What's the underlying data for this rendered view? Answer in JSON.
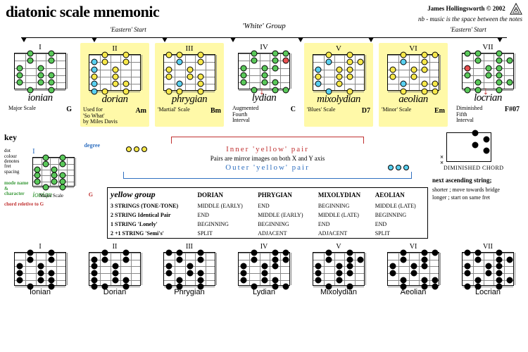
{
  "title": "diatonic scale mnemonic",
  "credits": {
    "line1": "James Hollingsworth © 2002",
    "line2": "nb - music is the space between the notes"
  },
  "group_label": "'White' Group",
  "eastern_start": "'Eastern' Start",
  "modes": [
    {
      "roman": "I",
      "name": "ionian",
      "desc": "Major Scale",
      "chord": "G",
      "yellow": false
    },
    {
      "roman": "II",
      "name": "dorian",
      "desc": "Used for\n'So What'\nby Miles Davis",
      "chord": "Am",
      "yellow": true
    },
    {
      "roman": "III",
      "name": "phrygian",
      "desc": "'Martial' Scale",
      "chord": "Bm",
      "yellow": true
    },
    {
      "roman": "IV",
      "name": "lydian",
      "desc": "Augmented\nFourth\nInterval",
      "chord": "C",
      "yellow": false
    },
    {
      "roman": "V",
      "name": "mixolydian",
      "desc": "'Blues' Scale",
      "chord": "D7",
      "yellow": true
    },
    {
      "roman": "VI",
      "name": "aeolian",
      "desc": "'Minor' Scale",
      "chord": "Em",
      "yellow": true
    },
    {
      "roman": "VII",
      "name": "locrian",
      "desc": "Diminished\nFifth\nInterval",
      "chord": "F#07",
      "yellow": false
    }
  ],
  "fretboard": {
    "strings": 6,
    "frets": 5,
    "colors": {
      "green": "#5ac85a",
      "yellow": "#f7e84a",
      "cyan": "#5ad0f0",
      "red": "#e85050",
      "black": "#000000"
    }
  },
  "mode_dots": {
    "ionian": [
      [
        "g",
        1,
        1
      ],
      [
        "g",
        1,
        3
      ],
      [
        "g",
        2,
        1
      ],
      [
        "g",
        2,
        3
      ],
      [
        "g",
        3,
        0
      ],
      [
        "g",
        3,
        2
      ],
      [
        "g",
        4,
        0
      ],
      [
        "g",
        4,
        2
      ],
      [
        "g",
        4,
        3
      ],
      [
        "g",
        5,
        0
      ],
      [
        "g",
        5,
        2
      ],
      [
        "g",
        5,
        3
      ],
      [
        "g",
        6,
        1
      ],
      [
        "g",
        6,
        3
      ]
    ],
    "dorian": [
      [
        "y",
        1,
        1
      ],
      [
        "y",
        1,
        3
      ],
      [
        "c",
        2,
        0
      ],
      [
        "y",
        2,
        1
      ],
      [
        "y",
        2,
        3
      ],
      [
        "c",
        3,
        0
      ],
      [
        "y",
        3,
        2
      ],
      [
        "y",
        4,
        0
      ],
      [
        "y",
        4,
        2
      ],
      [
        "c",
        5,
        0
      ],
      [
        "y",
        5,
        2
      ],
      [
        "y",
        5,
        3
      ],
      [
        "c",
        6,
        0
      ],
      [
        "y",
        6,
        1
      ],
      [
        "y",
        6,
        3
      ]
    ],
    "phrygian": [
      [
        "y",
        1,
        0
      ],
      [
        "y",
        1,
        1
      ],
      [
        "y",
        1,
        3
      ],
      [
        "c",
        2,
        1
      ],
      [
        "y",
        2,
        3
      ],
      [
        "y",
        3,
        0
      ],
      [
        "y",
        3,
        2
      ],
      [
        "y",
        4,
        0
      ],
      [
        "y",
        4,
        2
      ],
      [
        "y",
        4,
        3
      ],
      [
        "c",
        5,
        1
      ],
      [
        "y",
        5,
        3
      ],
      [
        "y",
        6,
        0
      ],
      [
        "y",
        6,
        1
      ],
      [
        "y",
        6,
        3
      ]
    ],
    "lydian": [
      [
        "g",
        1,
        1
      ],
      [
        "g",
        1,
        3
      ],
      [
        "g",
        1,
        4
      ],
      [
        "g",
        2,
        1
      ],
      [
        "g",
        2,
        3
      ],
      [
        "r",
        2,
        4
      ],
      [
        "g",
        3,
        0
      ],
      [
        "g",
        3,
        2
      ],
      [
        "g",
        3,
        3
      ],
      [
        "g",
        4,
        0
      ],
      [
        "g",
        4,
        2
      ],
      [
        "g",
        5,
        0
      ],
      [
        "g",
        5,
        2
      ],
      [
        "g",
        5,
        3
      ],
      [
        "g",
        6,
        1
      ],
      [
        "g",
        6,
        3
      ],
      [
        "g",
        6,
        4
      ]
    ],
    "mixolydian": [
      [
        "y",
        1,
        1
      ],
      [
        "y",
        1,
        3
      ],
      [
        "c",
        2,
        1
      ],
      [
        "y",
        2,
        3
      ],
      [
        "y",
        2,
        4
      ],
      [
        "c",
        3,
        0
      ],
      [
        "y",
        3,
        2
      ],
      [
        "y",
        3,
        3
      ],
      [
        "y",
        4,
        0
      ],
      [
        "y",
        4,
        2
      ],
      [
        "y",
        4,
        3
      ],
      [
        "c",
        5,
        0
      ],
      [
        "y",
        5,
        2
      ],
      [
        "c",
        6,
        1
      ],
      [
        "y",
        6,
        3
      ]
    ],
    "aeolian": [
      [
        "y",
        1,
        1
      ],
      [
        "y",
        1,
        3
      ],
      [
        "y",
        1,
        4
      ],
      [
        "c",
        2,
        1
      ],
      [
        "y",
        2,
        3
      ],
      [
        "y",
        3,
        0
      ],
      [
        "y",
        3,
        2
      ],
      [
        "y",
        3,
        3
      ],
      [
        "y",
        4,
        0
      ],
      [
        "y",
        4,
        2
      ],
      [
        "c",
        5,
        1
      ],
      [
        "y",
        5,
        3
      ],
      [
        "y",
        5,
        4
      ],
      [
        "y",
        6,
        1
      ],
      [
        "y",
        6,
        3
      ],
      [
        "y",
        6,
        4
      ]
    ],
    "locrian": [
      [
        "g",
        1,
        0
      ],
      [
        "g",
        1,
        1
      ],
      [
        "g",
        1,
        3
      ],
      [
        "g",
        2,
        1
      ],
      [
        "g",
        2,
        3
      ],
      [
        "g",
        2,
        4
      ],
      [
        "r",
        3,
        0
      ],
      [
        "g",
        3,
        2
      ],
      [
        "g",
        3,
        3
      ],
      [
        "g",
        4,
        0
      ],
      [
        "g",
        4,
        2
      ],
      [
        "g",
        4,
        3
      ],
      [
        "g",
        5,
        1
      ],
      [
        "g",
        5,
        3
      ],
      [
        "g",
        5,
        4
      ],
      [
        "g",
        6,
        0
      ],
      [
        "g",
        6,
        1
      ],
      [
        "g",
        6,
        3
      ]
    ]
  },
  "key": {
    "title": "key",
    "degree": "degree",
    "dot_note": "dot\ncolour\ndenotes\nfret\nspacing",
    "mode_note": "mode name\n&\ncharacter",
    "chord_note": "chord reletive to G",
    "example_name": "ionian",
    "example_desc": "Major Scale",
    "example_chord": "G"
  },
  "pairs": {
    "inner_label": "Inner 'yellow' pair",
    "outer_label": "Outer 'yellow' pair",
    "mirror_text": "Pairs are mirror images on both X and Y axis"
  },
  "table": {
    "head": [
      "yellow group",
      "DORIAN",
      "PHRYGIAN",
      "MIXOLYDIAN",
      "AEOLIAN"
    ],
    "rows": [
      [
        "3 STRINGS (TONE-TONE)",
        "MIDDLE (EARLY)",
        "END",
        "BEGINNING",
        "MIDDLE (LATE)"
      ],
      [
        "2 STRING Identical Pair",
        "END",
        "MIDDLE (EARLY)",
        "MIDDLE (LATE)",
        "BEGINNING"
      ],
      [
        "1 STRING 'Lonely'",
        "BEGINNING",
        "BEGINNING",
        "END",
        "END"
      ],
      [
        "2 +1 STRING 'Semi's'",
        "SPLIT",
        "ADJACENT",
        "ADJACENT",
        "SPLIT"
      ]
    ]
  },
  "dim_chord": {
    "label": "DIMINISHED CHORD",
    "next_string": "next ascending string;",
    "shorter": "shorter ; move towards bridge",
    "longer": "longer ; start on same fret"
  },
  "bottom_modes": [
    {
      "roman": "I",
      "name": "Ionian"
    },
    {
      "roman": "II",
      "name": "Dorian"
    },
    {
      "roman": "III",
      "name": "Phrygian"
    },
    {
      "roman": "IV",
      "name": "Lydian"
    },
    {
      "roman": "V",
      "name": "Mixolydian"
    },
    {
      "roman": "VI",
      "name": "Aeolian"
    },
    {
      "roman": "VII",
      "name": "Locrian"
    }
  ],
  "bottom_dots": {
    "Ionian": [
      [
        1,
        1
      ],
      [
        1,
        3
      ],
      [
        2,
        1
      ],
      [
        2,
        3
      ],
      [
        3,
        0
      ],
      [
        3,
        2
      ],
      [
        4,
        0
      ],
      [
        4,
        2
      ],
      [
        4,
        3
      ],
      [
        5,
        0
      ],
      [
        5,
        2
      ],
      [
        5,
        3
      ],
      [
        6,
        1
      ],
      [
        6,
        3
      ]
    ],
    "Dorian": [
      [
        1,
        1
      ],
      [
        1,
        3
      ],
      [
        2,
        0
      ],
      [
        2,
        1
      ],
      [
        2,
        3
      ],
      [
        3,
        0
      ],
      [
        3,
        2
      ],
      [
        4,
        0
      ],
      [
        4,
        2
      ],
      [
        5,
        0
      ],
      [
        5,
        2
      ],
      [
        5,
        3
      ],
      [
        6,
        0
      ],
      [
        6,
        1
      ],
      [
        6,
        3
      ]
    ],
    "Phrygian": [
      [
        1,
        0
      ],
      [
        1,
        1
      ],
      [
        1,
        3
      ],
      [
        2,
        1
      ],
      [
        2,
        3
      ],
      [
        3,
        0
      ],
      [
        3,
        2
      ],
      [
        4,
        0
      ],
      [
        4,
        2
      ],
      [
        4,
        3
      ],
      [
        5,
        1
      ],
      [
        5,
        3
      ],
      [
        6,
        0
      ],
      [
        6,
        1
      ],
      [
        6,
        3
      ]
    ],
    "Lydian": [
      [
        1,
        1
      ],
      [
        1,
        3
      ],
      [
        1,
        4
      ],
      [
        2,
        1
      ],
      [
        2,
        3
      ],
      [
        2,
        4
      ],
      [
        3,
        0
      ],
      [
        3,
        2
      ],
      [
        3,
        3
      ],
      [
        4,
        0
      ],
      [
        4,
        2
      ],
      [
        5,
        0
      ],
      [
        5,
        2
      ],
      [
        5,
        3
      ],
      [
        6,
        1
      ],
      [
        6,
        3
      ],
      [
        6,
        4
      ]
    ],
    "Mixolydian": [
      [
        1,
        1
      ],
      [
        1,
        3
      ],
      [
        2,
        1
      ],
      [
        2,
        3
      ],
      [
        2,
        4
      ],
      [
        3,
        0
      ],
      [
        3,
        2
      ],
      [
        3,
        3
      ],
      [
        4,
        0
      ],
      [
        4,
        2
      ],
      [
        4,
        3
      ],
      [
        5,
        0
      ],
      [
        5,
        2
      ],
      [
        6,
        1
      ],
      [
        6,
        3
      ]
    ],
    "Aeolian": [
      [
        1,
        1
      ],
      [
        1,
        3
      ],
      [
        1,
        4
      ],
      [
        2,
        1
      ],
      [
        2,
        3
      ],
      [
        3,
        0
      ],
      [
        3,
        2
      ],
      [
        3,
        3
      ],
      [
        4,
        0
      ],
      [
        4,
        2
      ],
      [
        5,
        1
      ],
      [
        5,
        3
      ],
      [
        5,
        4
      ],
      [
        6,
        1
      ],
      [
        6,
        3
      ],
      [
        6,
        4
      ]
    ],
    "Locrian": [
      [
        1,
        0
      ],
      [
        1,
        1
      ],
      [
        1,
        3
      ],
      [
        2,
        1
      ],
      [
        2,
        3
      ],
      [
        2,
        4
      ],
      [
        3,
        0
      ],
      [
        3,
        2
      ],
      [
        3,
        3
      ],
      [
        4,
        0
      ],
      [
        4,
        2
      ],
      [
        4,
        3
      ],
      [
        5,
        1
      ],
      [
        5,
        3
      ],
      [
        5,
        4
      ],
      [
        6,
        0
      ],
      [
        6,
        1
      ],
      [
        6,
        3
      ]
    ]
  }
}
